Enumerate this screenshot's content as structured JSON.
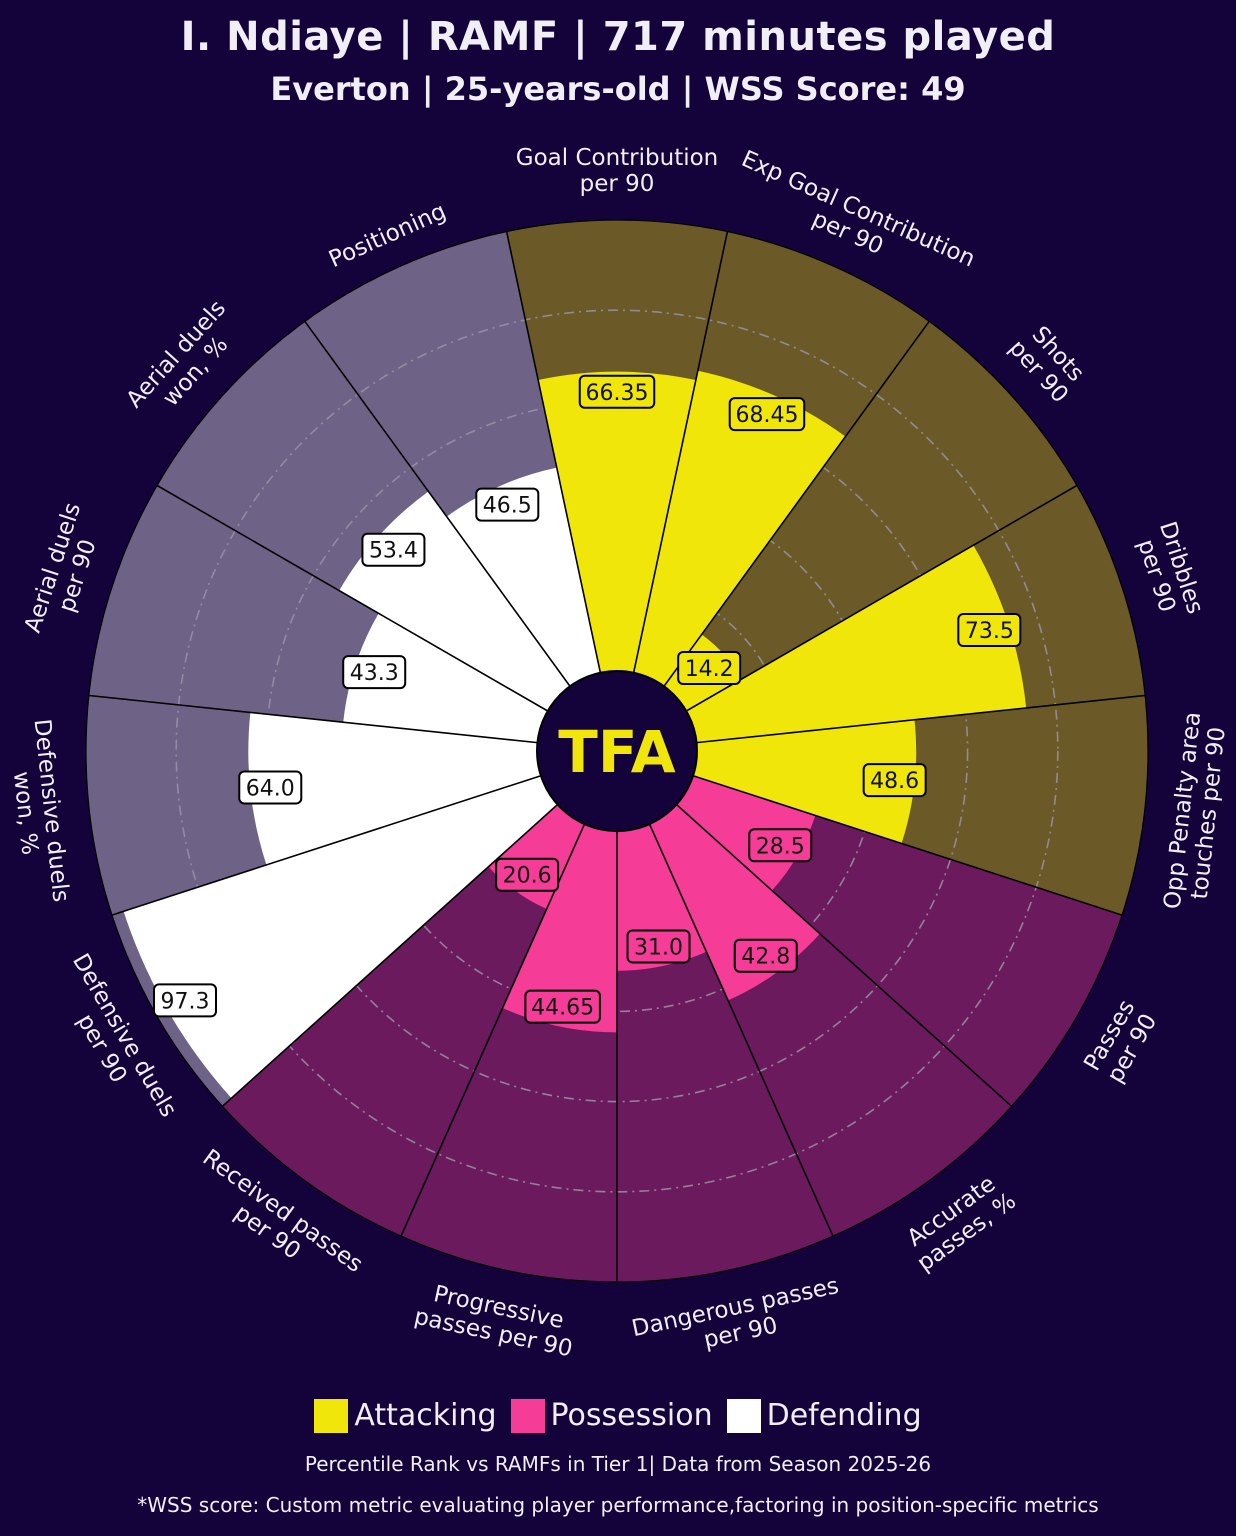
{
  "header": {
    "title": "I. Ndiaye | RAMF | 717 minutes played",
    "subtitle": "Everton | 25-years-old | WSS Score: 49"
  },
  "logo_text": "TFA",
  "legend": [
    {
      "label": "Attacking",
      "color": "#f0e60a"
    },
    {
      "label": "Possession",
      "color": "#f53c96"
    },
    {
      "label": "Defending",
      "color": "#ffffff"
    }
  ],
  "footer": {
    "note1": "Percentile Rank vs RAMFs in Tier 1| Data from Season 2025-26",
    "note2": "*WSS score: Custom metric evaluating player performance,factoring in position-specific metrics"
  },
  "colors": {
    "background": "#14023a",
    "attacking_bg": "#6b5a28",
    "possession_bg": "#6b1a5e",
    "defending_bg": "#6f6287"
  },
  "chart_data": {
    "type": "radial-bar",
    "scale": [
      0,
      100
    ],
    "groups": [
      "Attacking",
      "Possession",
      "Defending"
    ],
    "metrics": [
      {
        "label": "Goal Contribution\nper 90",
        "value": 66.35,
        "value_label": "66.35",
        "group": "Attacking"
      },
      {
        "label": "Exp Goal Contribution\nper 90",
        "value": 68.45,
        "value_label": "68.45",
        "group": "Attacking"
      },
      {
        "label": "Shots\nper 90",
        "value": 14.2,
        "value_label": "14.2",
        "group": "Attacking"
      },
      {
        "label": "Dribbles\nper 90",
        "value": 73.5,
        "value_label": "73.5",
        "group": "Attacking"
      },
      {
        "label": "Opp Penalty area\ntouches per 90",
        "value": 48.6,
        "value_label": "48.6",
        "group": "Attacking"
      },
      {
        "label": "Passes\nper 90",
        "value": 28.5,
        "value_label": "28.5",
        "group": "Possession"
      },
      {
        "label": "Accurate\npasses, %",
        "value": 42.8,
        "value_label": "42.8",
        "group": "Possession"
      },
      {
        "label": "Dangerous passes\nper 90",
        "value": 31.0,
        "value_label": "31.0",
        "group": "Possession"
      },
      {
        "label": "Progressive\npasses per 90",
        "value": 44.65,
        "value_label": "44.65",
        "group": "Possession"
      },
      {
        "label": "Received passes\nper 90",
        "value": 20.6,
        "value_label": "20.6",
        "group": "Possession"
      },
      {
        "label": "Defensive duels\nper 90",
        "value": 97.3,
        "value_label": "97.3",
        "group": "Defending"
      },
      {
        "label": "Defensive duels\nwon, %",
        "value": 64.0,
        "value_label": "64.0",
        "group": "Defending"
      },
      {
        "label": "Aerial duels\nper 90",
        "value": 43.3,
        "value_label": "43.3",
        "group": "Defending"
      },
      {
        "label": "Aerial duels\nwon, %",
        "value": 53.4,
        "value_label": "53.4",
        "group": "Defending"
      },
      {
        "label": "Positioning",
        "value": 46.5,
        "value_label": "46.5",
        "group": "Defending"
      }
    ]
  }
}
